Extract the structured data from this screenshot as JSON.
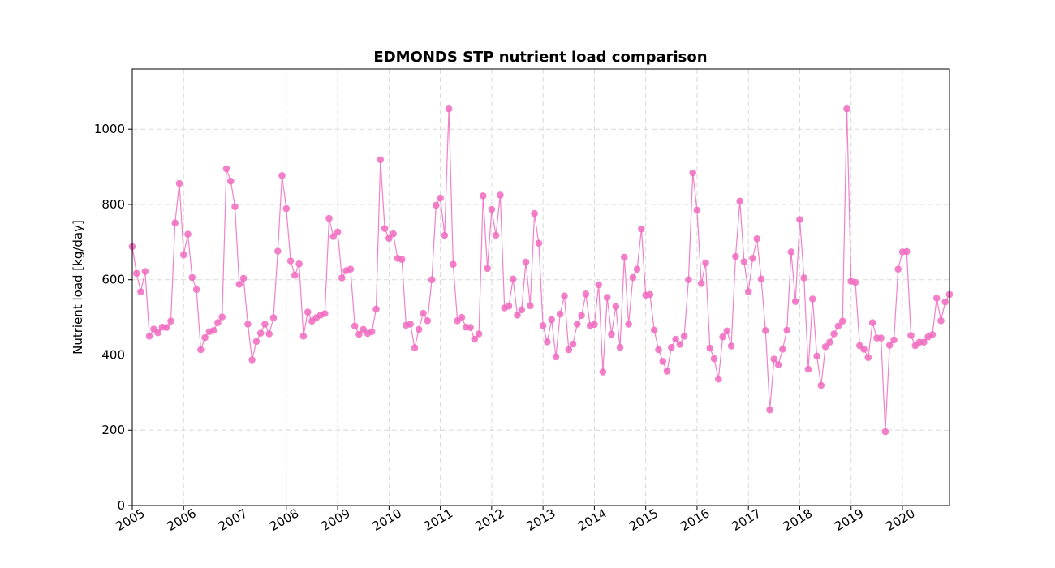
{
  "chart_data": {
    "type": "line",
    "title": "EDMONDS STP nutrient load comparison",
    "xlabel": "",
    "ylabel": "Nutrient load [kg/day]",
    "ylim": [
      0,
      1160
    ],
    "yticks": [
      "0",
      "200",
      "400",
      "600",
      "800",
      "1000"
    ],
    "xticks": [
      "2005",
      "2006",
      "2007",
      "2008",
      "2009",
      "2010",
      "2011",
      "2012",
      "2013",
      "2014",
      "2015",
      "2016",
      "2017",
      "2018",
      "2019",
      "2020"
    ],
    "xlim": [
      "2005-01",
      "2020-12"
    ],
    "grid": true,
    "color": "#f06bbf",
    "series": [
      {
        "start": "2005-01",
        "frequency": "monthly",
        "values": [
          688,
          617,
          568,
          622,
          450,
          469,
          459,
          474,
          473,
          490,
          751,
          856,
          666,
          721,
          606,
          574,
          414,
          446,
          462,
          465,
          486,
          501,
          895,
          862,
          794,
          588,
          604,
          482,
          387,
          436,
          458,
          482,
          456,
          499,
          676,
          877,
          789,
          650,
          612,
          642,
          450,
          514,
          490,
          499,
          506,
          510,
          763,
          715,
          727,
          605,
          624,
          628,
          477,
          455,
          468,
          457,
          462,
          522,
          919,
          736,
          710,
          722,
          657,
          654,
          479,
          482,
          419,
          468,
          511,
          491,
          600,
          798,
          817,
          718,
          1054,
          641,
          491,
          500,
          474,
          473,
          442,
          456,
          823,
          630,
          787,
          718,
          825,
          525,
          530,
          602,
          506,
          520,
          647,
          531,
          776,
          697,
          478,
          435,
          494,
          395,
          509,
          557,
          414,
          429,
          482,
          505,
          562,
          478,
          481,
          587,
          355,
          553,
          455,
          529,
          420,
          660,
          482,
          606,
          628,
          735,
          559,
          561,
          466,
          414,
          383,
          357,
          420,
          442,
          428,
          450,
          600,
          884,
          785,
          590,
          645,
          418,
          390,
          336,
          448,
          464,
          424,
          662,
          809,
          648,
          568,
          657,
          709,
          602,
          465,
          254,
          389,
          374,
          415,
          466,
          674,
          542,
          760,
          605,
          362,
          549,
          397,
          319,
          422,
          434,
          456,
          477,
          490,
          1054,
          596,
          593,
          425,
          415,
          393,
          486,
          445,
          445,
          196,
          426,
          440,
          628,
          674,
          675,
          452,
          425,
          434,
          434,
          448,
          454,
          551,
          491,
          541,
          561
        ]
      }
    ]
  }
}
